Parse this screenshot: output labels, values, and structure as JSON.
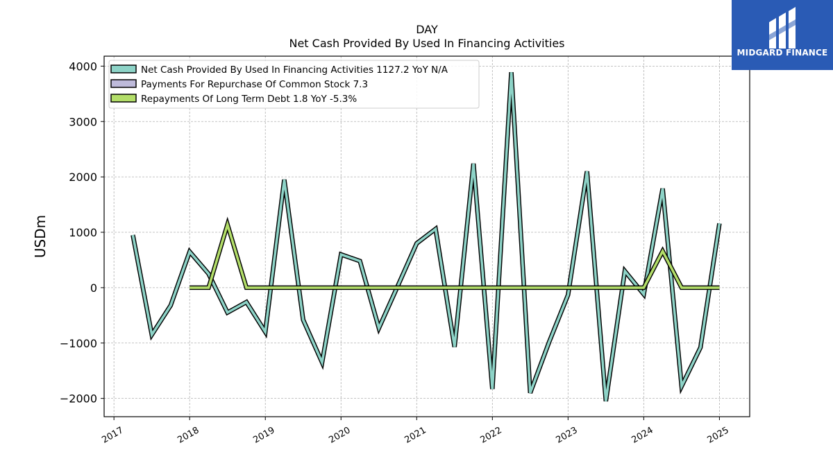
{
  "brand": {
    "name": "MIDGARD FINANCE",
    "color": "#2a5bb5"
  },
  "chart_data": {
    "type": "line",
    "title": "DAY",
    "subtitle": "Net Cash Provided By Used In Financing Activities",
    "xlabel": "",
    "ylabel": "USDm",
    "xlim": [
      2016.87,
      2025.4
    ],
    "ylim": [
      -2330,
      4180
    ],
    "x_ticks": [
      "2017",
      "2018",
      "2019",
      "2020",
      "2021",
      "2022",
      "2023",
      "2024",
      "2025"
    ],
    "y_ticks": [
      -2000,
      -1000,
      0,
      1000,
      2000,
      3000,
      4000
    ],
    "y_tick_labels": [
      "−2000",
      "−1000",
      "0",
      "1000",
      "2000",
      "3000",
      "4000"
    ],
    "grid": true,
    "legend_position": "top-left",
    "series": [
      {
        "name": "Net Cash Provided By Used In Financing Activities",
        "legend_label": "Net Cash Provided By Used In Financing Activities  1127.2 YoY N/A",
        "color": "#8dd3c7",
        "x": [
          2017.25,
          2017.5,
          2017.75,
          2018.0,
          2018.25,
          2018.5,
          2018.75,
          2019.0,
          2019.25,
          2019.5,
          2019.75,
          2020.0,
          2020.25,
          2020.5,
          2020.75,
          2021.0,
          2021.25,
          2021.5,
          2021.75,
          2022.0,
          2022.25,
          2022.5,
          2022.75,
          2023.0,
          2023.25,
          2023.5,
          2023.75,
          2024.0,
          2024.25,
          2024.5,
          2024.75,
          2025.0
        ],
        "values": [
          950,
          -850,
          -320,
          650,
          250,
          -450,
          -260,
          -800,
          1950,
          -580,
          -1350,
          600,
          480,
          -730,
          30,
          800,
          1060,
          -1070,
          2240,
          -1830,
          3890,
          -1900,
          -980,
          -130,
          2100,
          -2050,
          300,
          -120,
          1790,
          -1780,
          -1080,
          1160
        ]
      },
      {
        "name": "Payments For Repurchase Of Common Stock",
        "legend_label": "Payments For Repurchase Of Common Stock  7.3",
        "color": "#bebada",
        "x": [],
        "values": []
      },
      {
        "name": "Repayments Of Long Term Debt",
        "legend_label": "Repayments Of Long Term Debt  1.8 YoY -5.3%",
        "color": "#b3de69",
        "x": [
          2018.0,
          2018.25,
          2018.5,
          2018.75,
          2019.0,
          2019.25,
          2019.5,
          2019.75,
          2020.0,
          2020.25,
          2020.5,
          2020.75,
          2021.0,
          2021.25,
          2021.5,
          2021.75,
          2022.0,
          2022.25,
          2022.5,
          2022.75,
          2023.0,
          2023.25,
          2023.5,
          2023.75,
          2024.0,
          2024.25,
          2024.5,
          2024.75,
          2025.0
        ],
        "values": [
          0,
          0,
          1140,
          0,
          0,
          0,
          0,
          0,
          0,
          0,
          0,
          0,
          0,
          0,
          0,
          0,
          0,
          0,
          0,
          0,
          0,
          0,
          0,
          0,
          0,
          660,
          0,
          0,
          0
        ]
      }
    ]
  }
}
